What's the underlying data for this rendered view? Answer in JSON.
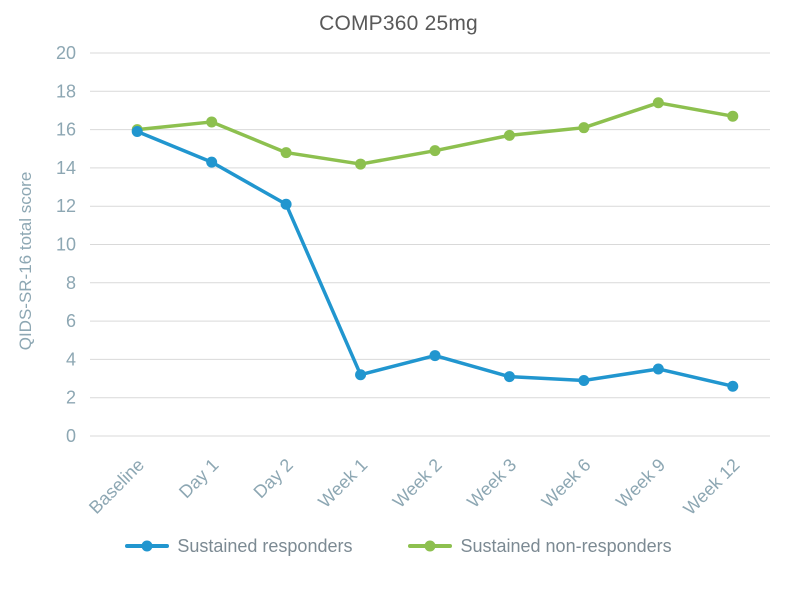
{
  "chart_data": {
    "type": "line",
    "title": "COMP360 25mg",
    "xlabel": "",
    "ylabel": "QIDS-SR-16 total score",
    "categories": [
      "Baseline",
      "Day 1",
      "Day 2",
      "Week 1",
      "Week 2",
      "Week 3",
      "Week 6",
      "Week 9",
      "Week 12"
    ],
    "series": [
      {
        "name": "Sustained responders",
        "color": "#2196cf",
        "values": [
          15.9,
          14.3,
          12.1,
          3.2,
          4.2,
          3.1,
          2.9,
          3.5,
          2.6
        ]
      },
      {
        "name": "Sustained non-responders",
        "color": "#8dc04f",
        "values": [
          16.0,
          16.4,
          14.8,
          14.2,
          14.9,
          15.7,
          16.1,
          17.4,
          16.7
        ]
      }
    ],
    "ylim": [
      0,
      20
    ],
    "ytick_step": 2,
    "grid": true,
    "legend_position": "bottom"
  },
  "colors": {
    "title": "#595959",
    "axis_text": "#8da7b3",
    "grid": "#d9d9d9",
    "legend_text": "#7c8a93"
  }
}
